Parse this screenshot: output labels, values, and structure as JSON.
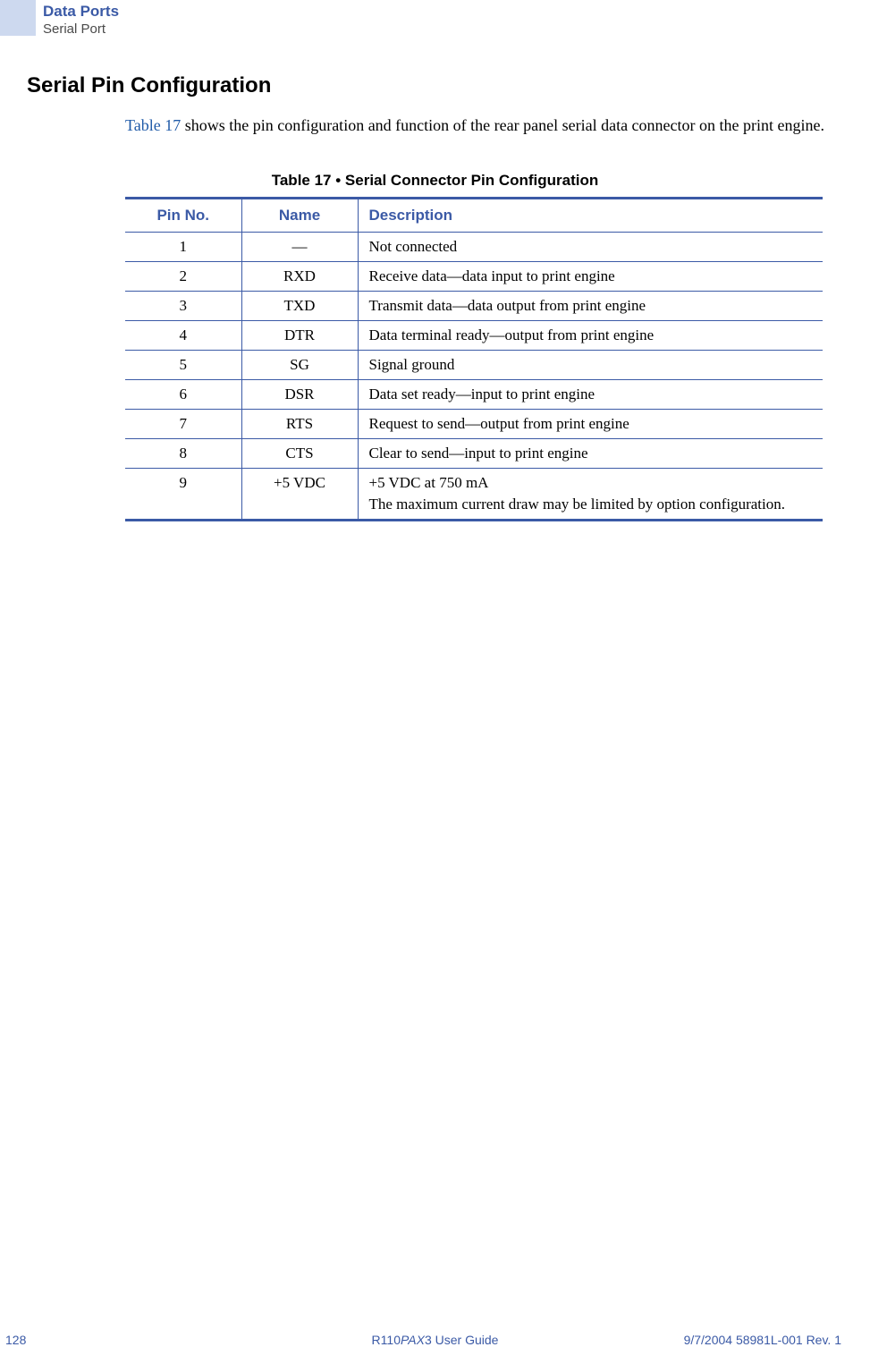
{
  "header": {
    "title": "Data Ports",
    "subtitle": "Serial Port"
  },
  "section": {
    "heading": "Serial Pin Configuration",
    "para_link": "Table 17",
    "para_rest": " shows the pin configuration and function of the rear panel serial data connector on the print engine."
  },
  "table": {
    "caption": "Table 17 • Serial Connector Pin Configuration",
    "columns": {
      "pin": "Pin No.",
      "name": "Name",
      "desc": "Description"
    },
    "rows": [
      {
        "pin": "1",
        "name": "—",
        "desc": "Not connected"
      },
      {
        "pin": "2",
        "name": "RXD",
        "desc": "Receive data—data input to print engine"
      },
      {
        "pin": "3",
        "name": "TXD",
        "desc": "Transmit data—data output from print engine"
      },
      {
        "pin": "4",
        "name": "DTR",
        "desc": "Data terminal ready—output from print engine"
      },
      {
        "pin": "5",
        "name": "SG",
        "desc": "Signal ground"
      },
      {
        "pin": "6",
        "name": "DSR",
        "desc": "Data set ready—input to print engine"
      },
      {
        "pin": "7",
        "name": "RTS",
        "desc": "Request to send—output from print engine"
      },
      {
        "pin": "8",
        "name": "CTS",
        "desc": "Clear to send—input to print engine"
      },
      {
        "pin": "9",
        "name": "+5 VDC",
        "desc": "+5 VDC at 750 mA",
        "desc2": "The maximum current draw may be limited by option configuration."
      }
    ]
  },
  "footer": {
    "page": "128",
    "center_prefix": "R110",
    "center_italic": "PAX",
    "center_suffix": "3 User Guide",
    "right": "9/7/2004    58981L-001 Rev. 1"
  },
  "colors": {
    "brand_blue": "#3b5aa6",
    "link_blue": "#1f5aa8",
    "header_bg": "#cdd9ef"
  }
}
